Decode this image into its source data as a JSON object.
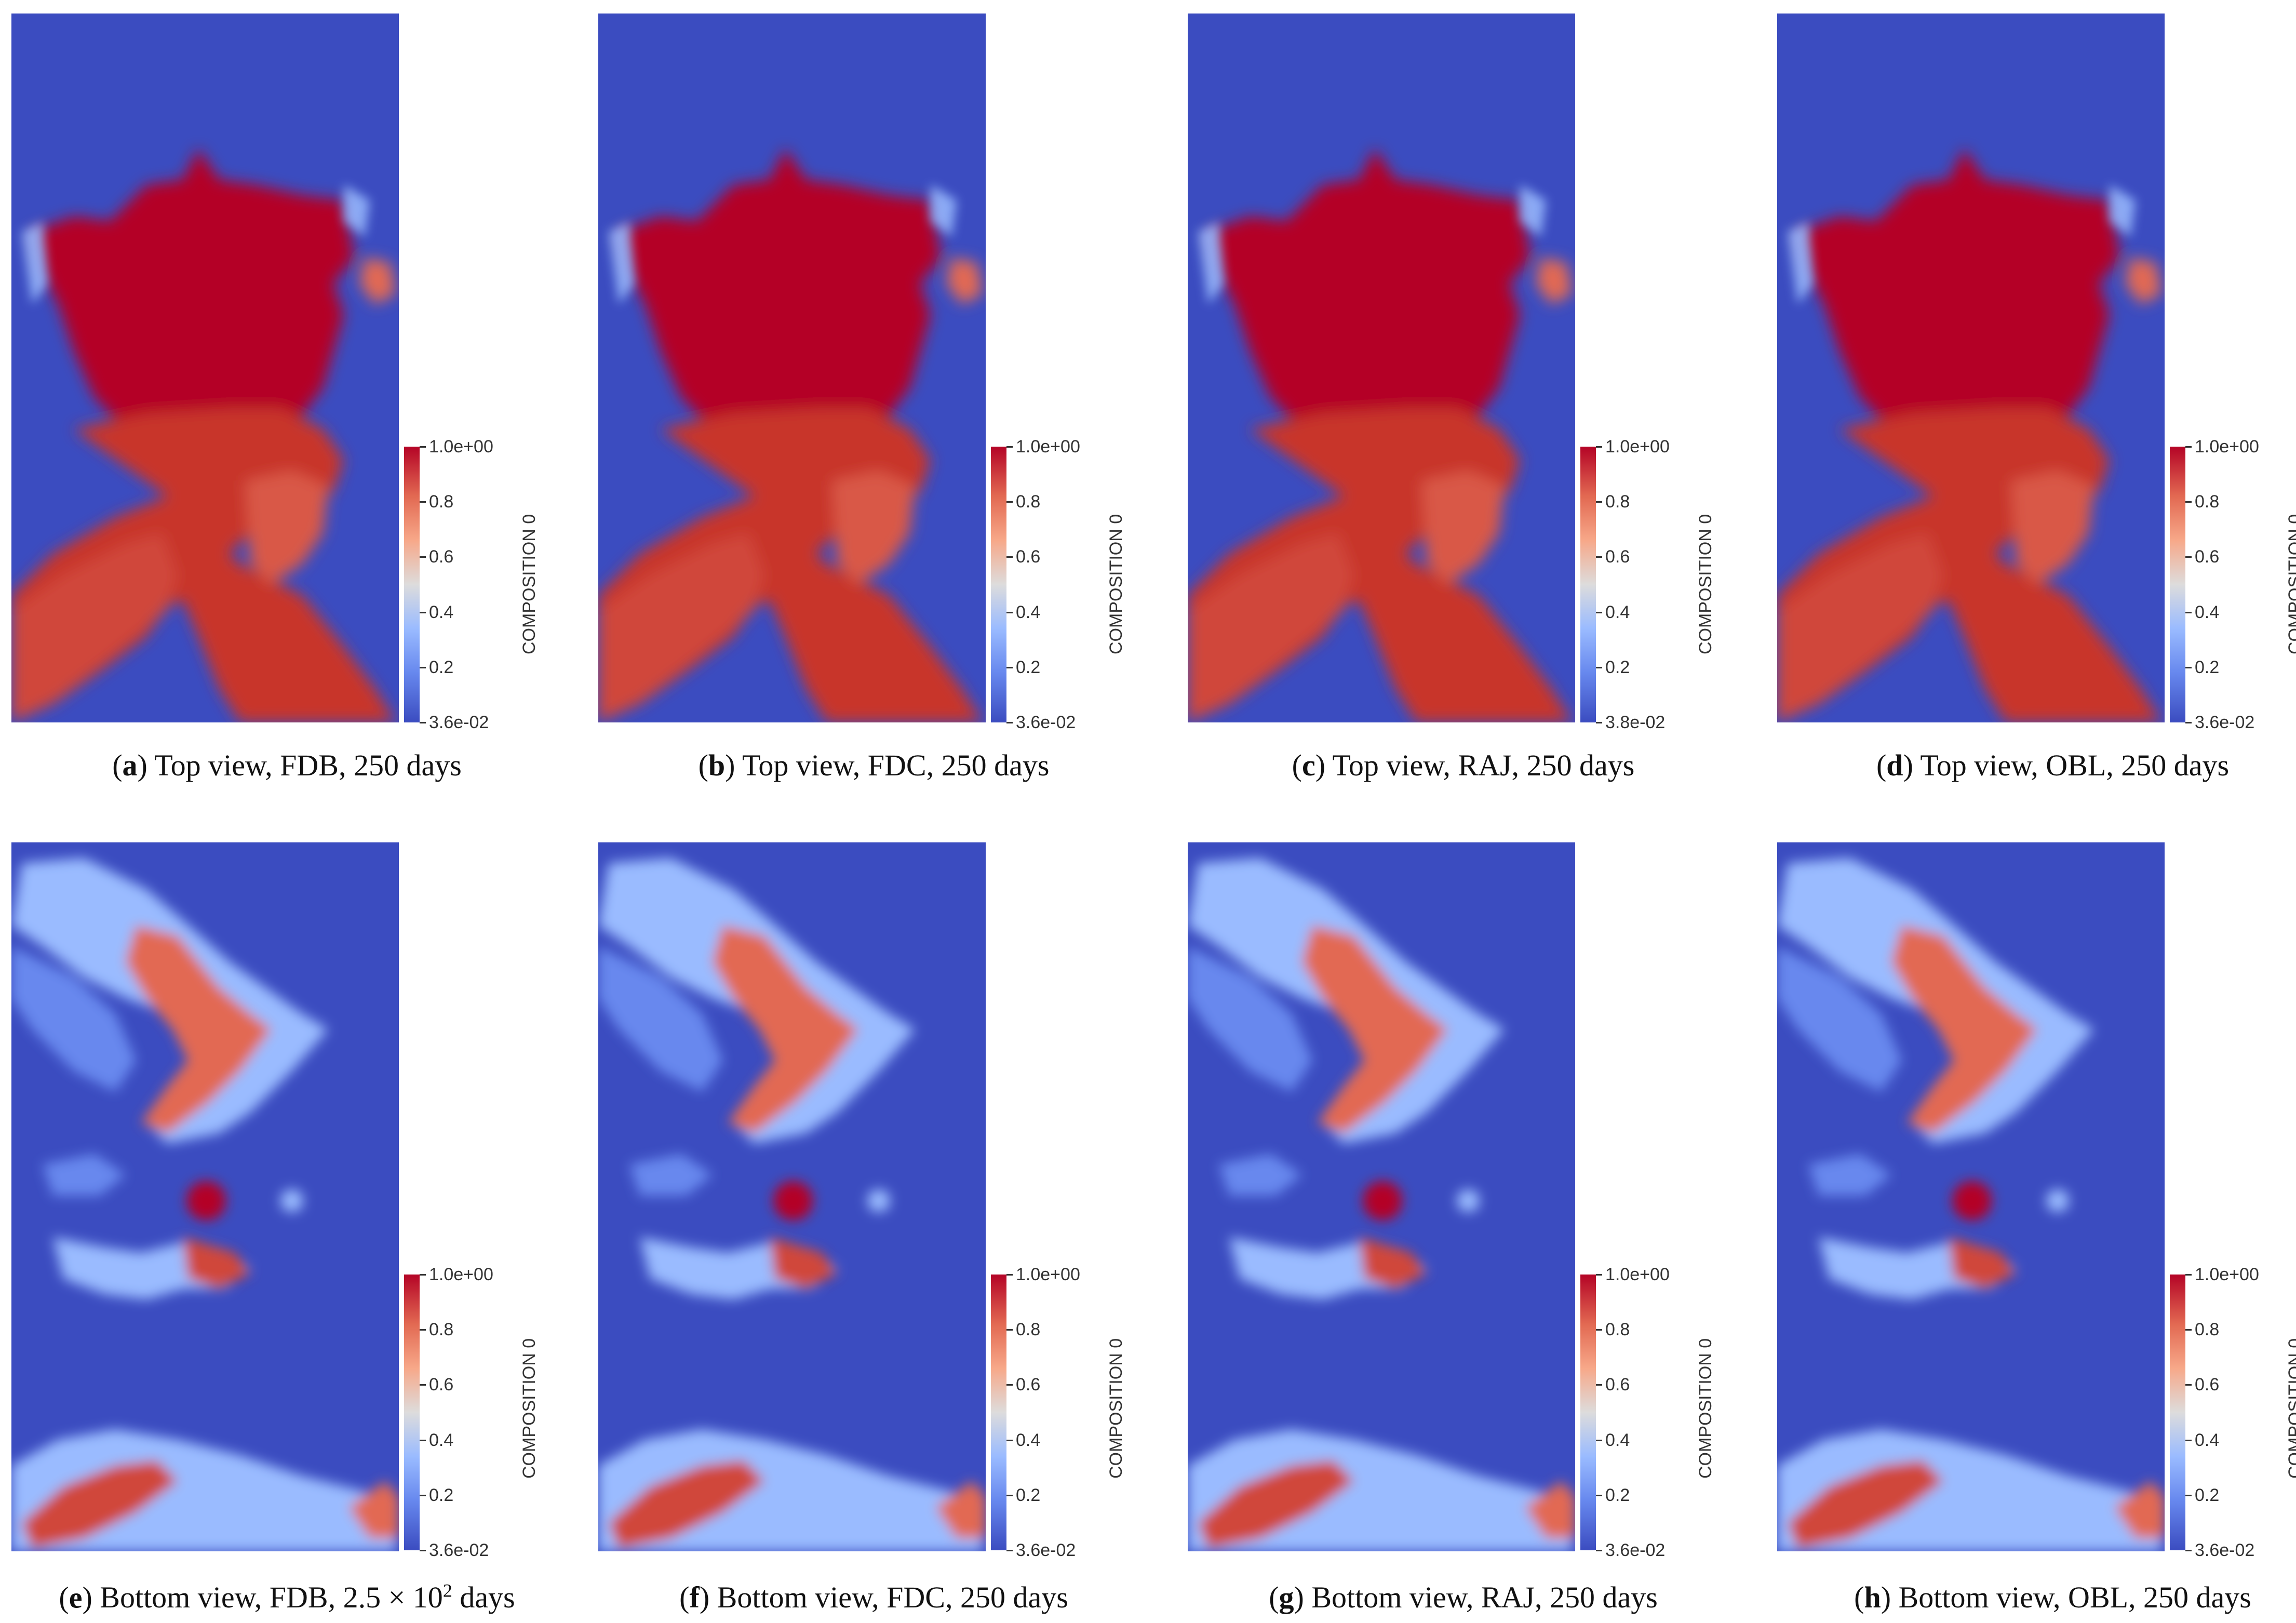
{
  "panels": [
    {
      "letter": "a",
      "text": "Top view, FDB, 250 days",
      "view": "top",
      "max_label": "1.0e+00",
      "min_label": "3.6e-02"
    },
    {
      "letter": "b",
      "text": "Top view, FDC, 250 days",
      "view": "top",
      "max_label": "1.0e+00",
      "min_label": "3.6e-02"
    },
    {
      "letter": "c",
      "text": "Top view, RAJ, 250 days",
      "view": "top",
      "max_label": "1.0e+00",
      "min_label": "3.8e-02"
    },
    {
      "letter": "d",
      "text": "Top view, OBL, 250 days",
      "view": "top",
      "max_label": "1.0e+00",
      "min_label": "3.6e-02"
    },
    {
      "letter": "e",
      "text_pre": "Bottom view, FDB, 2.5 × 10",
      "text_sup": "2",
      "text_post": " days",
      "view": "bottom",
      "max_label": "1.0e+00",
      "min_label": "3.6e-02"
    },
    {
      "letter": "f",
      "text": "Bottom view, FDC, 250 days",
      "view": "bottom",
      "max_label": "1.0e+00",
      "min_label": "3.6e-02"
    },
    {
      "letter": "g",
      "text": "Bottom view, RAJ, 250 days",
      "view": "bottom",
      "max_label": "1.0e+00",
      "min_label": "3.6e-02"
    },
    {
      "letter": "h",
      "text": "Bottom view, OBL, 250 days",
      "view": "bottom",
      "max_label": "1.0e+00",
      "min_label": "3.6e-02"
    }
  ],
  "colorbar": {
    "title": "COMPOSITION 0",
    "mid_ticks": [
      "0.8",
      "0.6",
      "0.4",
      "0.2"
    ],
    "colors": [
      "#3b4cc0",
      "#6788ee",
      "#9abbff",
      "#dddcdc",
      "#f7a889",
      "#e26952",
      "#b40426"
    ]
  }
}
